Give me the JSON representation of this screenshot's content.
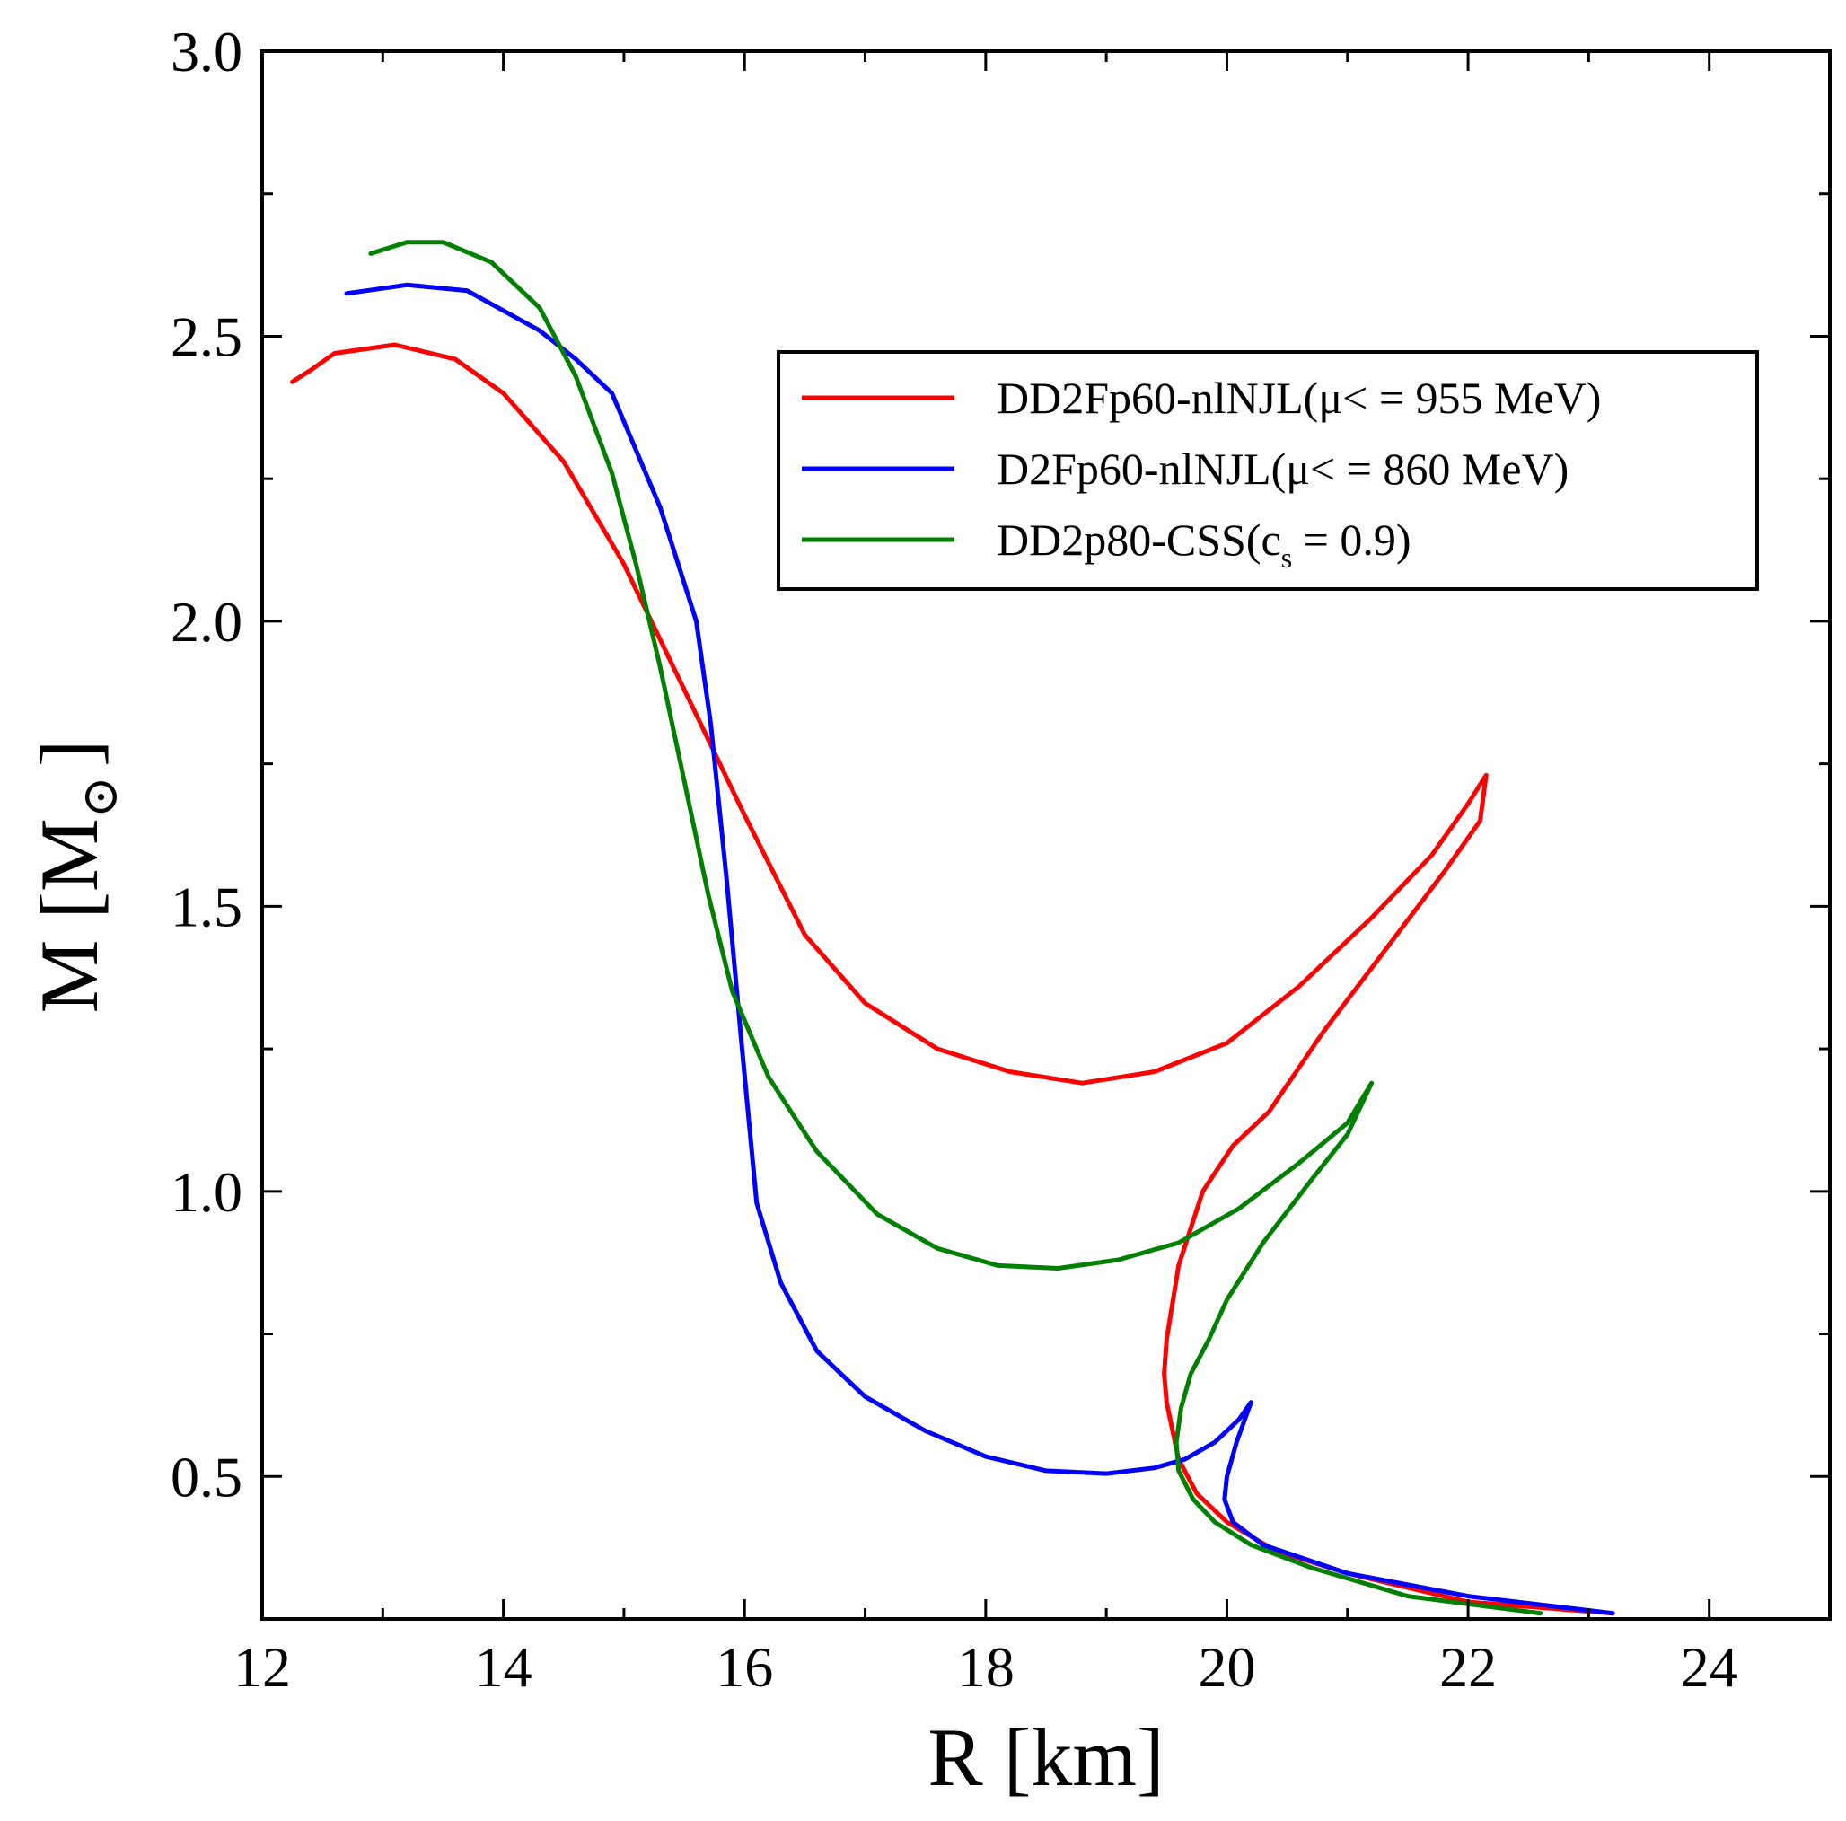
{
  "chart_data": {
    "type": "line",
    "xlabel": "R [km]",
    "ylabel_main": "M [M",
    "ylabel_sub": "⊙",
    "ylabel_close": "]",
    "xlim": [
      12,
      25
    ],
    "ylim": [
      0.25,
      3.0
    ],
    "xticks": [
      12,
      14,
      16,
      18,
      20,
      22,
      24
    ],
    "xtick_labels": [
      "12",
      "14",
      "16",
      "18",
      "20",
      "22",
      "24"
    ],
    "yticks": [
      0.5,
      1.0,
      1.5,
      2.0,
      2.5,
      3.0
    ],
    "ytick_labels": [
      "0.5",
      "1.0",
      "1.5",
      "2.0",
      "2.5",
      "3.0"
    ],
    "legend": {
      "position": "top-right"
    },
    "series": [
      {
        "name": "DD2Fp60-nlNJL(μ< = 955 MeV)",
        "legend_main": "DD2Fp60-nlNJL(μ< = 955 MeV)",
        "legend_sub": "",
        "legend_tail": "",
        "color": "#ff0000",
        "x": [
          23.2,
          22.0,
          21.0,
          20.4,
          20.0,
          19.75,
          19.6,
          19.55,
          19.5,
          19.48,
          19.5,
          19.6,
          19.8,
          20.05,
          20.35,
          20.8,
          21.3,
          21.8,
          22.1,
          22.15,
          22.0,
          21.7,
          21.2,
          20.6,
          20.0,
          19.4,
          18.8,
          18.2,
          17.6,
          17.0,
          16.5,
          16.0,
          15.5,
          15.0,
          14.5,
          14.0,
          13.6,
          13.1,
          12.6,
          12.4,
          12.25
        ],
        "y": [
          0.26,
          0.28,
          0.33,
          0.37,
          0.42,
          0.47,
          0.53,
          0.58,
          0.63,
          0.68,
          0.74,
          0.87,
          1.0,
          1.08,
          1.14,
          1.28,
          1.42,
          1.56,
          1.65,
          1.73,
          1.68,
          1.59,
          1.48,
          1.36,
          1.26,
          1.21,
          1.19,
          1.21,
          1.25,
          1.33,
          1.45,
          1.66,
          1.88,
          2.1,
          2.28,
          2.4,
          2.46,
          2.485,
          2.47,
          2.44,
          2.42
        ]
      },
      {
        "name": "D2Fp60-nlNJL(μ< = 860 MeV)",
        "legend_main": "D2Fp60-nlNJL(μ< = 860 MeV)",
        "legend_sub": "",
        "legend_tail": "",
        "color": "#0000ff",
        "x": [
          23.2,
          22.0,
          21.0,
          20.3,
          20.05,
          19.98,
          20.0,
          20.08,
          20.2,
          20.1,
          19.9,
          19.65,
          19.4,
          19.0,
          18.5,
          18.0,
          17.5,
          17.0,
          16.6,
          16.3,
          16.1,
          15.98,
          15.85,
          15.72,
          15.6,
          15.45,
          15.3,
          15.1,
          14.9,
          14.6,
          14.3,
          14.0,
          13.7,
          13.2,
          12.7
        ],
        "y": [
          0.26,
          0.29,
          0.33,
          0.38,
          0.42,
          0.46,
          0.5,
          0.56,
          0.63,
          0.6,
          0.56,
          0.53,
          0.515,
          0.505,
          0.51,
          0.535,
          0.58,
          0.64,
          0.72,
          0.84,
          0.98,
          1.25,
          1.55,
          1.82,
          2.0,
          2.1,
          2.2,
          2.3,
          2.4,
          2.46,
          2.51,
          2.545,
          2.58,
          2.59,
          2.575
        ]
      },
      {
        "name": "DD2p80-CSS(cs = 0.9)",
        "legend_main": "DD2p80-CSS(c",
        "legend_sub": "s",
        "legend_tail": " = 0.9)",
        "color": "#008000",
        "x": [
          22.6,
          21.5,
          20.7,
          20.2,
          19.9,
          19.72,
          19.6,
          19.58,
          19.62,
          19.7,
          19.85,
          20.0,
          20.3,
          20.7,
          21.0,
          21.2,
          21.0,
          20.6,
          20.1,
          19.6,
          19.1,
          18.6,
          18.1,
          17.6,
          17.1,
          16.6,
          16.2,
          15.9,
          15.7,
          15.5,
          15.3,
          15.1,
          14.9,
          14.6,
          14.3,
          13.9,
          13.5,
          13.2,
          12.9
        ],
        "y": [
          0.26,
          0.29,
          0.34,
          0.38,
          0.42,
          0.46,
          0.51,
          0.56,
          0.62,
          0.68,
          0.74,
          0.81,
          0.91,
          1.02,
          1.1,
          1.19,
          1.12,
          1.05,
          0.97,
          0.91,
          0.88,
          0.865,
          0.87,
          0.9,
          0.96,
          1.07,
          1.2,
          1.35,
          1.52,
          1.72,
          1.92,
          2.1,
          2.26,
          2.43,
          2.55,
          2.63,
          2.665,
          2.665,
          2.645
        ]
      }
    ]
  }
}
